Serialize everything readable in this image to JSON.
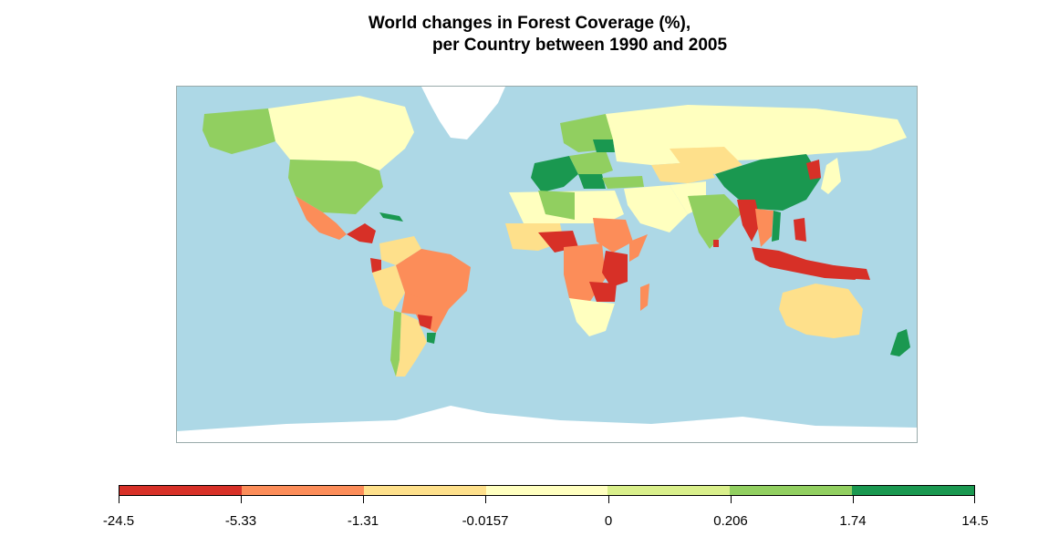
{
  "title": {
    "line1": "World changes in Forest Coverage (%),",
    "line2": "per Country between 1990 and 2005"
  },
  "colors": {
    "ocean": "#add8e6",
    "no_data": "#ffffff",
    "c1": "#d73027",
    "c2": "#fc8d59",
    "c3": "#fee08b",
    "c4": "#ffffbf",
    "c5": "#d9ef8b",
    "c6": "#91cf60",
    "c7": "#1a9850"
  },
  "legend": {
    "breaks": [
      "-24.5",
      "-5.33",
      "-1.31",
      "-0.0157",
      "0",
      "0.206",
      "1.74",
      "14.5"
    ],
    "segment_colors": [
      "#d73027",
      "#fc8d59",
      "#fee08b",
      "#ffffbf",
      "#d9ef8b",
      "#91cf60",
      "#1a9850"
    ]
  }
}
